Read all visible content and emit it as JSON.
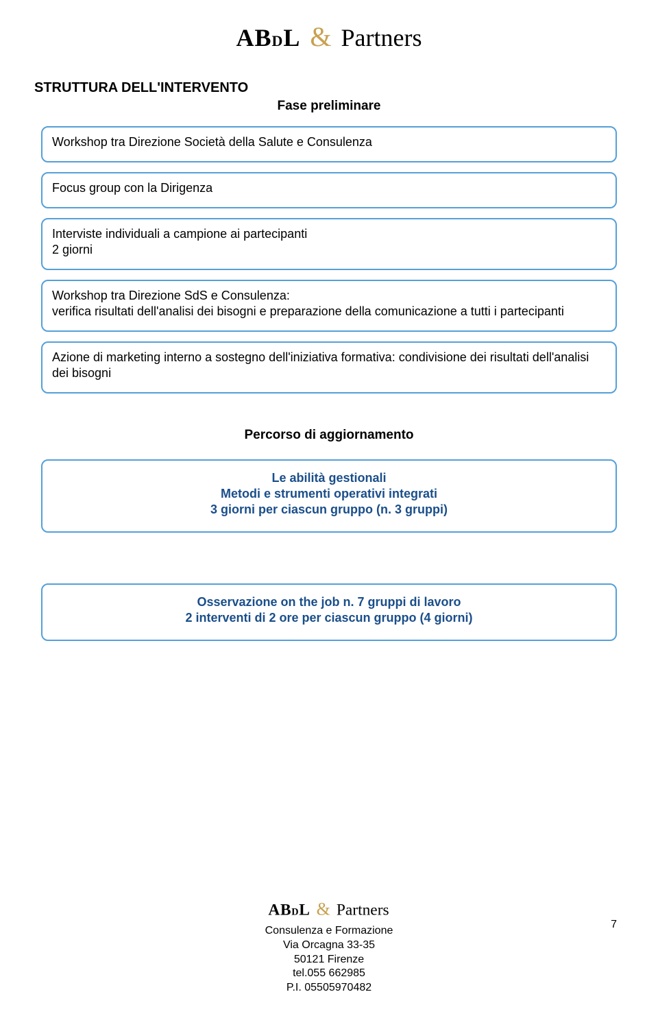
{
  "logo": {
    "abdl_a": "AB",
    "abdl_d": "D",
    "abdl_l": "L",
    "amp": "&",
    "partners": "Partners"
  },
  "section_title": "STRUTTURA DELL'INTERVENTO",
  "fase_preliminare": "Fase preliminare",
  "boxes_top": [
    {
      "text": "Workshop tra Direzione Società della Salute e Consulenza"
    },
    {
      "text": "Focus group con la  Dirigenza"
    },
    {
      "text": "Interviste individuali a campione ai partecipanti\n2 giorni"
    },
    {
      "text": "Workshop tra Direzione SdS e Consulenza:\nverifica risultati dell'analisi dei bisogni e preparazione della comunicazione a tutti i partecipanti"
    },
    {
      "text": "Azione di marketing interno  a sostegno dell'iniziativa formativa: condivisione dei risultati dell'analisi dei bisogni"
    }
  ],
  "percorso": "Percorso di aggiornamento",
  "box_skills": {
    "line1": "Le abilità gestionali",
    "line2": "Metodi e strumenti operativi integrati",
    "line3": "3 giorni per  ciascun gruppo (n. 3 gruppi)"
  },
  "box_observ": {
    "line1": "Osservazione on the job n. 7 gruppi di lavoro",
    "line2": "2 interventi di 2 ore per ciascun gruppo (4 giorni)"
  },
  "footer": {
    "l1": "Consulenza e Formazione",
    "l2": "Via Orcagna 33-35",
    "l3": "50121 Firenze",
    "l4": "tel.055 662985",
    "l5": "P.I. 05505970482"
  },
  "page_number": "7",
  "colors": {
    "box_border": "#55a0d8",
    "bold_text": "#1a4e8a",
    "amp_gold": "#c9a050"
  }
}
